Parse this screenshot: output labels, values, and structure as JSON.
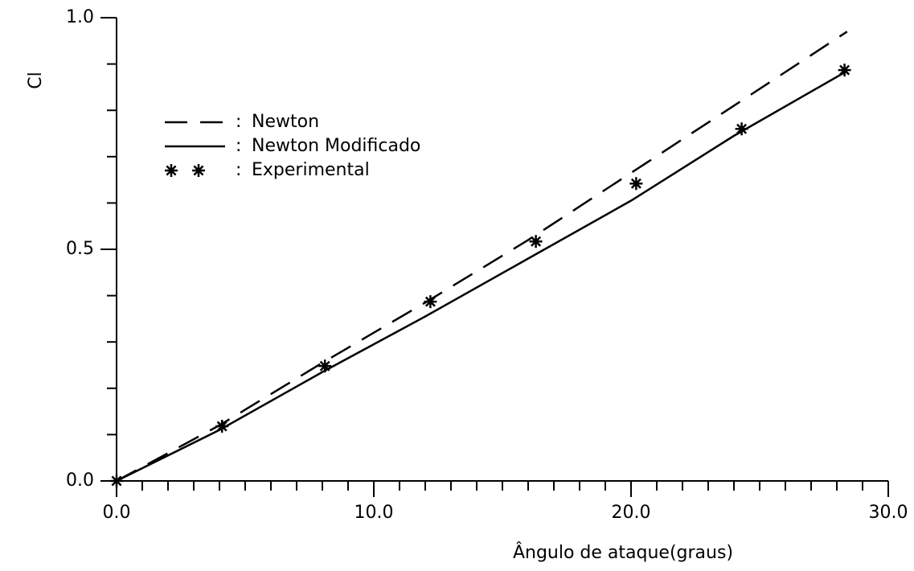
{
  "chart_data": {
    "type": "line",
    "xlabel": "Ângulo de ataque(graus)",
    "ylabel": "Cl",
    "xlim": [
      0,
      30
    ],
    "ylim": [
      0,
      1
    ],
    "xticks": [
      {
        "value": 0,
        "label": "0.0"
      },
      {
        "value": 10,
        "label": "10.0"
      },
      {
        "value": 20,
        "label": "20.0"
      },
      {
        "value": 30,
        "label": "30.0"
      }
    ],
    "xminorticks": [
      1,
      2,
      3,
      4,
      5,
      6,
      7,
      8,
      9,
      11,
      12,
      13,
      14,
      15,
      16,
      17,
      18,
      19,
      21,
      22,
      23,
      24,
      25,
      26,
      27,
      28,
      29
    ],
    "yticks": [
      {
        "value": 0,
        "label": "0.0"
      },
      {
        "value": 0.5,
        "label": "0.5"
      },
      {
        "value": 1,
        "label": "1.0"
      }
    ],
    "yminorticks": [
      0.1,
      0.2,
      0.3,
      0.4,
      0.6,
      0.7,
      0.8,
      0.9
    ],
    "grid": false,
    "legend": "upper left",
    "series": [
      {
        "name": "Newton",
        "color": "#000000",
        "style": "dashed",
        "x": [
          0,
          4,
          8,
          12,
          16,
          20,
          24,
          28.4
        ],
        "values": [
          0,
          0.12,
          0.255,
          0.385,
          0.52,
          0.665,
          0.81,
          0.97
        ]
      },
      {
        "name": "Newton Modificado",
        "color": "#000000",
        "style": "solid",
        "x": [
          0,
          4,
          8,
          12,
          16,
          20,
          24,
          28.4
        ],
        "values": [
          0,
          0.11,
          0.235,
          0.355,
          0.48,
          0.605,
          0.745,
          0.885
        ]
      },
      {
        "name": "Experimental",
        "color": "#000000",
        "style": "markers",
        "x": [
          0,
          4.1,
          8.1,
          12.2,
          16.3,
          20.2,
          24.3,
          28.3
        ],
        "values": [
          0,
          0.118,
          0.248,
          0.387,
          0.517,
          0.642,
          0.76,
          0.887
        ]
      }
    ]
  }
}
